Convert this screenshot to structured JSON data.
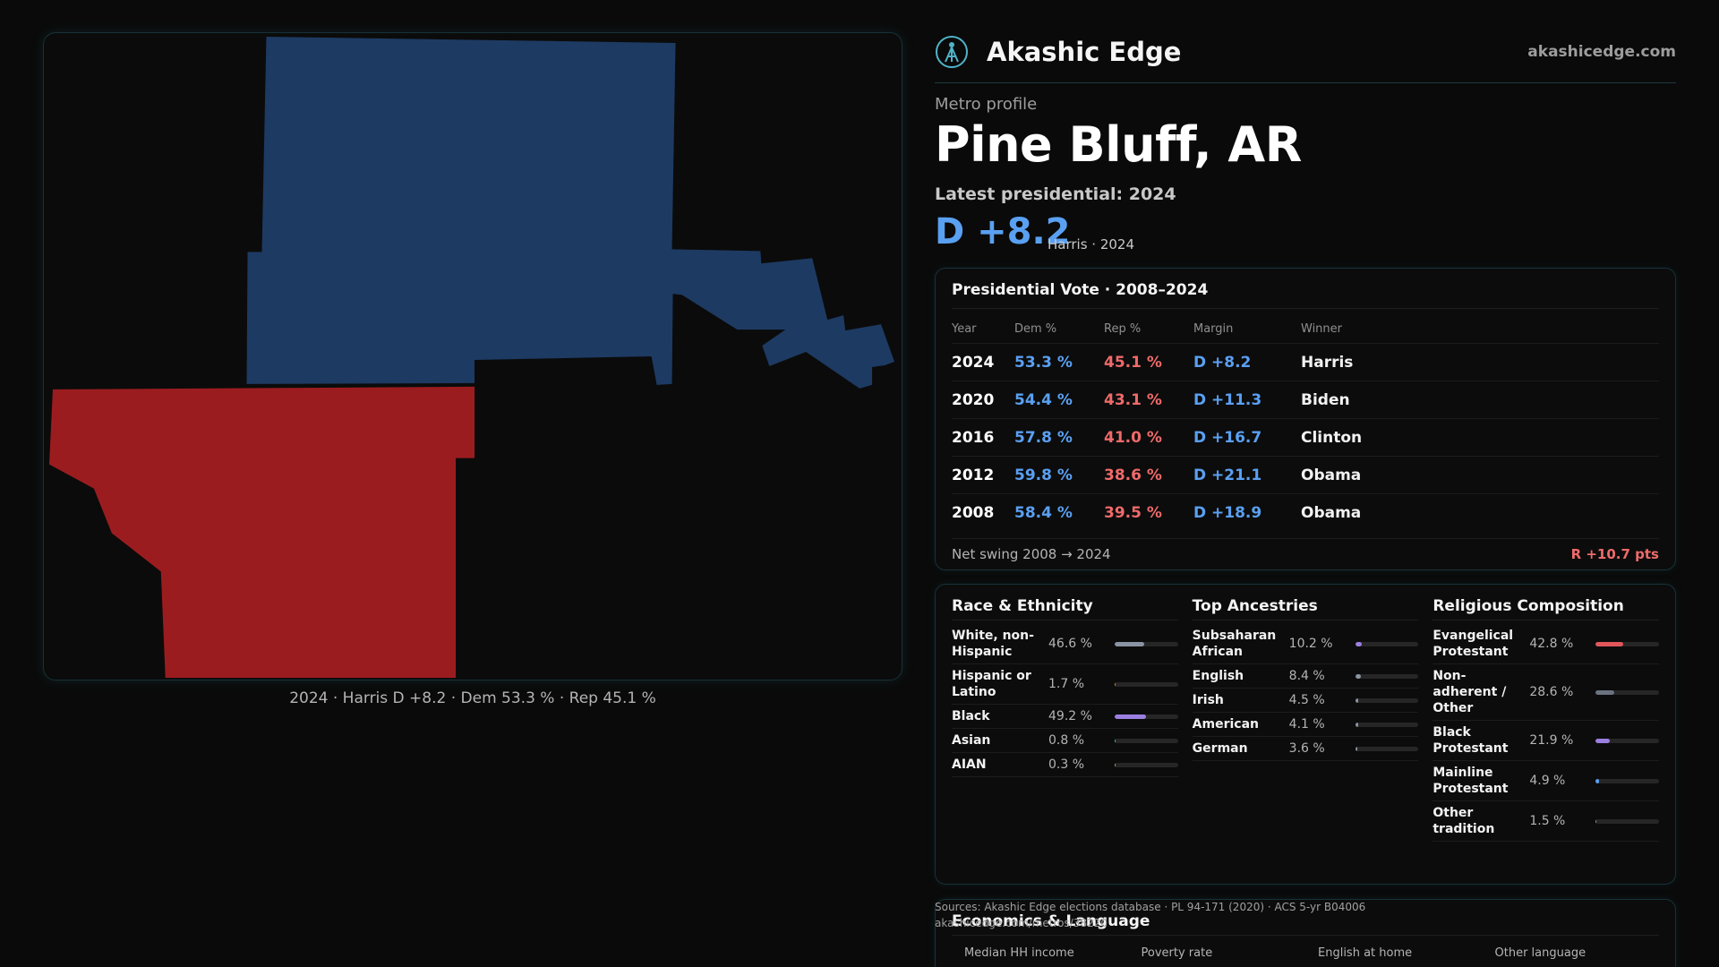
{
  "brand": {
    "name": "Akashic Edge",
    "site": "akashicedge.com"
  },
  "header": {
    "eyebrow": "Metro profile",
    "title": "Pine Bluff, AR",
    "latest": "Latest presidential: 2024",
    "margin": "D +8.2",
    "margin_sub": "Harris · 2024"
  },
  "map": {
    "caption": "2024 · Harris D +8.2 · Dem 53.3 % · Rep 45.1 %",
    "colors": {
      "dem": "#1d3a62",
      "rep": "#9b1c1f"
    }
  },
  "vote": {
    "title": "Presidential Vote · 2008–2024",
    "headers": {
      "year": "Year",
      "dem": "Dem %",
      "rep": "Rep %",
      "margin": "Margin",
      "winner": "Winner"
    },
    "rows": [
      {
        "year": "2024",
        "dem": "53.3 %",
        "rep": "45.1 %",
        "margin": "D +8.2",
        "winner": "Harris"
      },
      {
        "year": "2020",
        "dem": "54.4 %",
        "rep": "43.1 %",
        "margin": "D +11.3",
        "winner": "Biden"
      },
      {
        "year": "2016",
        "dem": "57.8 %",
        "rep": "41.0 %",
        "margin": "D +16.7",
        "winner": "Clinton"
      },
      {
        "year": "2012",
        "dem": "59.8 %",
        "rep": "38.6 %",
        "margin": "D +21.1",
        "winner": "Obama"
      },
      {
        "year": "2008",
        "dem": "58.4 %",
        "rep": "39.5 %",
        "margin": "D +18.9",
        "winner": "Obama"
      }
    ],
    "swing_label": "Net swing 2008 → 2024",
    "swing_value": "R +10.7 pts"
  },
  "race": {
    "title": "Race & Ethnicity",
    "items": [
      {
        "label": "White, non-Hispanic",
        "value": "46.6 %",
        "pct": 46.6,
        "color": "#8a93a3"
      },
      {
        "label": "Hispanic or Latino",
        "value": "1.7 %",
        "pct": 1.7,
        "color": "#d98a3a"
      },
      {
        "label": "Black",
        "value": "49.2 %",
        "pct": 49.2,
        "color": "#9b7fe0"
      },
      {
        "label": "Asian",
        "value": "0.8 %",
        "pct": 0.8,
        "color": "#4fb3a8"
      },
      {
        "label": "AIAN",
        "value": "0.3 %",
        "pct": 0.3,
        "color": "#c0a060"
      }
    ]
  },
  "ancestry": {
    "title": "Top Ancestries",
    "items": [
      {
        "label": "Subsaharan African",
        "value": "10.2 %",
        "pct": 10.2,
        "color": "#9b7fe0"
      },
      {
        "label": "English",
        "value": "8.4 %",
        "pct": 8.4,
        "color": "#8a93a3"
      },
      {
        "label": "Irish",
        "value": "4.5 %",
        "pct": 4.5,
        "color": "#8a93a3"
      },
      {
        "label": "American",
        "value": "4.1 %",
        "pct": 4.1,
        "color": "#8a93a3"
      },
      {
        "label": "German",
        "value": "3.6 %",
        "pct": 3.6,
        "color": "#8a93a3"
      }
    ]
  },
  "religion": {
    "title": "Religious Composition",
    "items": [
      {
        "label": "Evangelical Protestant",
        "value": "42.8 %",
        "pct": 42.8,
        "color": "#e0565b"
      },
      {
        "label": "Non-adherent / Other",
        "value": "28.6 %",
        "pct": 28.6,
        "color": "#6b7280"
      },
      {
        "label": "Black Protestant",
        "value": "21.9 %",
        "pct": 21.9,
        "color": "#9b7fe0"
      },
      {
        "label": "Mainline Protestant",
        "value": "4.9 %",
        "pct": 4.9,
        "color": "#5aa0f2"
      },
      {
        "label": "Other tradition",
        "value": "1.5 %",
        "pct": 1.5,
        "color": "#8a93a3"
      }
    ]
  },
  "econ": {
    "title": "Economics & Language",
    "headers": [
      "Median HH income",
      "Poverty rate",
      "English at home",
      "Other language"
    ]
  },
  "footer": {
    "sources": "Sources: Akashic Edge elections database · PL 94-171 (2020) · ACS 5-yr B04006",
    "url": "akashicedge.com/metros/38220"
  }
}
